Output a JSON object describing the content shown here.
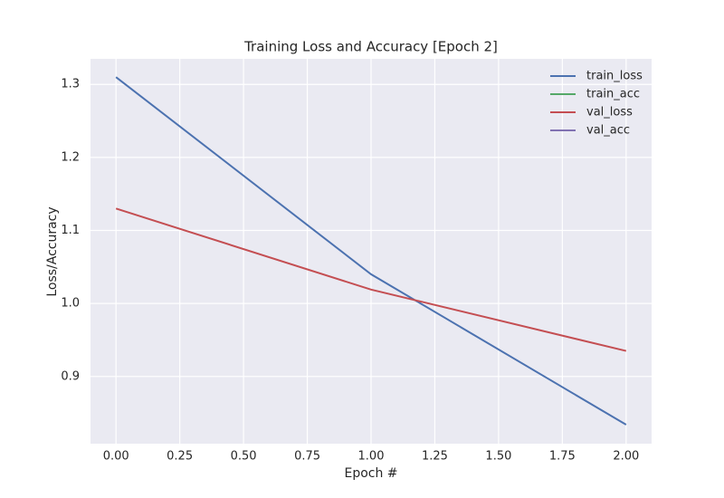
{
  "chart_data": {
    "type": "line",
    "title": "Training Loss and Accuracy [Epoch 2]",
    "x_label": "Epoch #",
    "y_label": "Loss/Accuracy",
    "x": [
      0,
      1,
      2
    ],
    "series": [
      {
        "name": "train_loss",
        "color": "#4c72b0",
        "values": [
          1.31,
          1.04,
          0.834
        ]
      },
      {
        "name": "train_acc",
        "color": "#55a868",
        "values": [
          null,
          null,
          null
        ]
      },
      {
        "name": "val_loss",
        "color": "#c44e52",
        "values": [
          1.13,
          1.019,
          0.935
        ]
      },
      {
        "name": "val_acc",
        "color": "#8172b2",
        "values": [
          null,
          null,
          null
        ]
      }
    ],
    "xlim": [
      -0.1,
      2.1
    ],
    "ylim": [
      0.808,
      1.335
    ],
    "xticks": [
      {
        "value": 0,
        "label": "0.00"
      },
      {
        "value": 0.25,
        "label": "0.25"
      },
      {
        "value": 0.5,
        "label": "0.50"
      },
      {
        "value": 0.75,
        "label": "0.75"
      },
      {
        "value": 1,
        "label": "1.00"
      },
      {
        "value": 1.25,
        "label": "1.25"
      },
      {
        "value": 1.5,
        "label": "1.50"
      },
      {
        "value": 1.75,
        "label": "1.75"
      },
      {
        "value": 2,
        "label": "2.00"
      }
    ],
    "yticks": [
      0.9,
      {
        "value": 1.0,
        "label": "1.0"
      },
      1.1,
      1.2,
      1.3
    ],
    "grid": true,
    "legend": "upper right"
  }
}
